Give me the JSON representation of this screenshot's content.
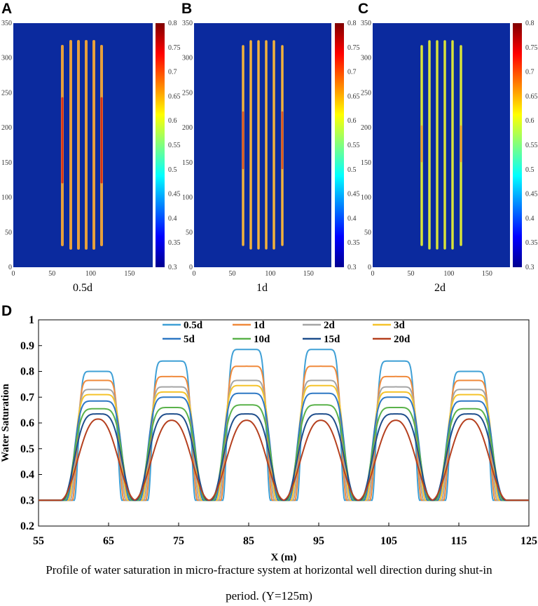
{
  "panels": [
    {
      "letter": "A",
      "time_label": "0.5d"
    },
    {
      "letter": "B",
      "time_label": "1d"
    },
    {
      "letter": "C",
      "time_label": "2d"
    }
  ],
  "map_axes": {
    "x_ticks": [
      "0",
      "50",
      "100",
      "150"
    ],
    "y_ticks": [
      "0",
      "50",
      "100",
      "150",
      "200",
      "250",
      "300",
      "350"
    ],
    "colorbar_ticks": [
      "0.8",
      "0.75",
      "0.7",
      "0.65",
      "0.6",
      "0.55",
      "0.5",
      "0.45",
      "0.4",
      "0.35",
      "0.3"
    ]
  },
  "chart_data": {
    "panel_letter": "D",
    "type": "line",
    "xlabel": "X (m)",
    "ylabel": "Water Saturation",
    "xlim": [
      55,
      125
    ],
    "ylim": [
      0.2,
      1
    ],
    "x_ticks": [
      "55",
      "65",
      "75",
      "85",
      "95",
      "105",
      "115",
      "125"
    ],
    "y_ticks": [
      "0.2",
      "0.3",
      "0.4",
      "0.5",
      "0.6",
      "0.7",
      "0.8",
      "0.9",
      "1"
    ],
    "fracture_centers": [
      63.5,
      74,
      84.7,
      95.3,
      106,
      116.5
    ],
    "baseline": 0.3,
    "series": [
      {
        "name": "0.5d",
        "color": "#3fa0d6",
        "peaks": [
          0.8,
          0.84,
          0.885,
          0.885,
          0.84,
          0.8
        ]
      },
      {
        "name": "1d",
        "color": "#f08a3c",
        "peaks": [
          0.765,
          0.78,
          0.82,
          0.82,
          0.78,
          0.765
        ]
      },
      {
        "name": "2d",
        "color": "#a5a5a5",
        "peaks": [
          0.73,
          0.74,
          0.765,
          0.765,
          0.74,
          0.73
        ]
      },
      {
        "name": "3d",
        "color": "#f5c32b",
        "peaks": [
          0.71,
          0.72,
          0.745,
          0.745,
          0.72,
          0.71
        ]
      },
      {
        "name": "5d",
        "color": "#2f78c4",
        "peaks": [
          0.685,
          0.7,
          0.715,
          0.715,
          0.7,
          0.685
        ]
      },
      {
        "name": "10d",
        "color": "#5ab24a",
        "peaks": [
          0.655,
          0.66,
          0.67,
          0.67,
          0.66,
          0.655
        ]
      },
      {
        "name": "15d",
        "color": "#1f4e8c",
        "peaks": [
          0.635,
          0.635,
          0.635,
          0.635,
          0.635,
          0.635
        ]
      },
      {
        "name": "20d",
        "color": "#b5401f",
        "peaks": [
          0.615,
          0.61,
          0.61,
          0.61,
          0.61,
          0.615
        ]
      }
    ]
  },
  "caption": {
    "line1": "Profile of water saturation in micro-fracture system at horizontal well direction during shut-in",
    "line2": "period. (Y=125m)"
  }
}
